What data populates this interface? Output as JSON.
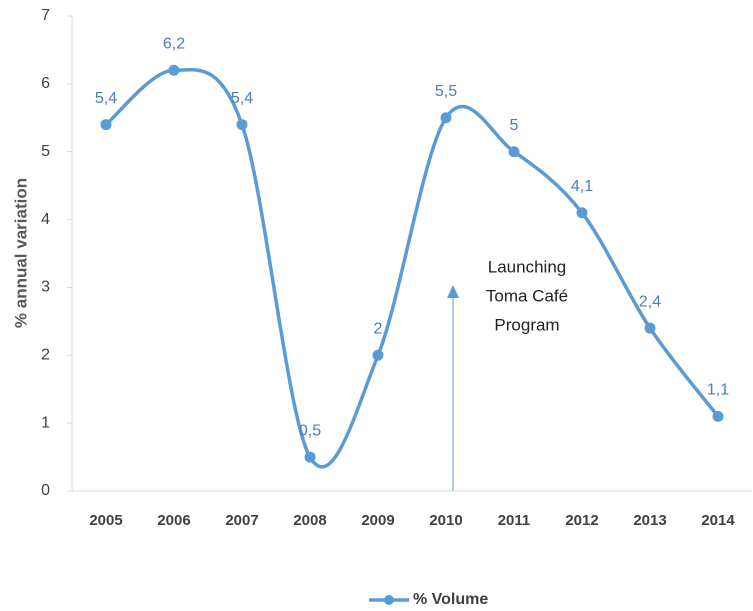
{
  "chart_data": {
    "type": "line",
    "y_label": "% annual variation",
    "categories": [
      "2005",
      "2006",
      "2007",
      "2008",
      "2009",
      "2010",
      "2011",
      "2012",
      "2013",
      "2014"
    ],
    "series": [
      {
        "name": "% Volume",
        "color": "#5b9bd5",
        "values": [
          5.4,
          6.2,
          5.4,
          0.5,
          2,
          5.5,
          5,
          4.1,
          2.4,
          1.1
        ],
        "value_labels": [
          "5,4",
          "6,2",
          "5,4",
          "0,5",
          "2",
          "5,5",
          "5",
          "4,1",
          "2,4",
          "1,1"
        ]
      }
    ],
    "ylim": [
      0,
      7
    ],
    "yticks": [
      0,
      1,
      2,
      3,
      4,
      5,
      6,
      7
    ],
    "smooth": true,
    "legend": "bottom",
    "annotation": [
      "Launching",
      "Toma Café",
      "Program"
    ]
  }
}
